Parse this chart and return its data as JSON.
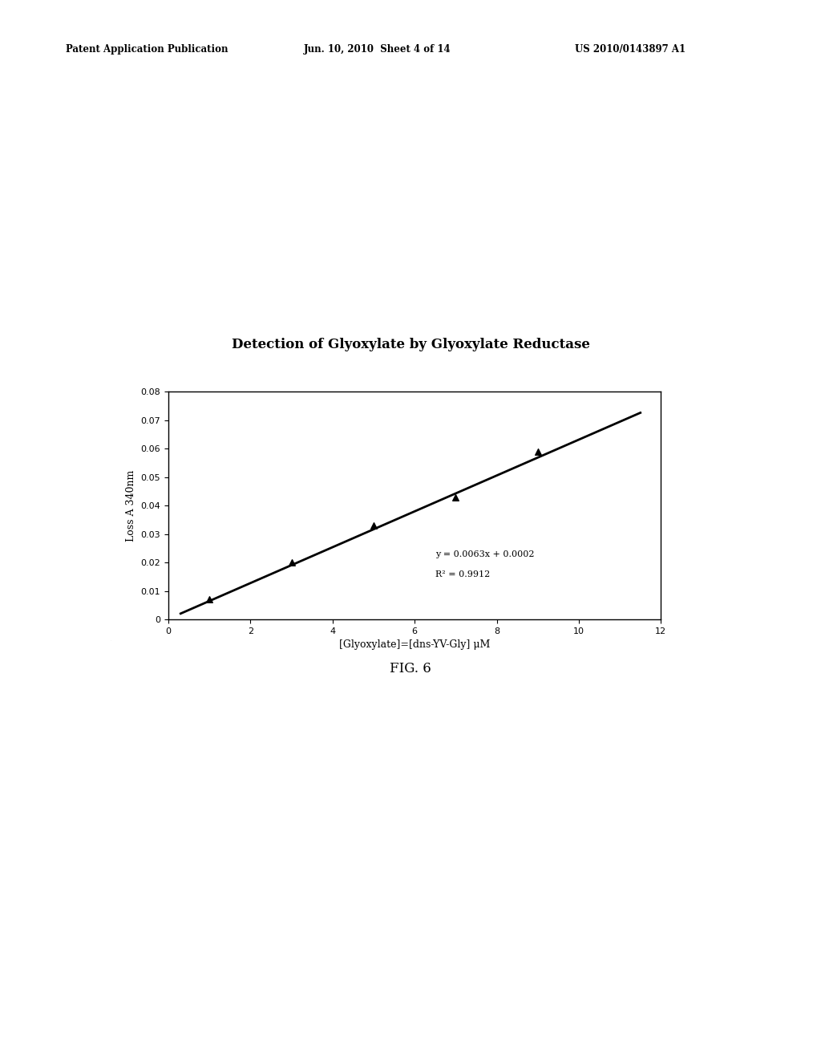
{
  "title": "Detection of Glyoxylate by Glyoxylate Reductase",
  "xlabel": "[Glyoxylate]=[dns-YV-Gly] μM",
  "ylabel": "Loss A 340nm",
  "xlim": [
    0,
    12
  ],
  "ylim": [
    0,
    0.08
  ],
  "xticks": [
    0,
    2,
    4,
    6,
    8,
    10,
    12
  ],
  "yticks": [
    0,
    0.01,
    0.02,
    0.03,
    0.04,
    0.05,
    0.06,
    0.07,
    0.08
  ],
  "data_x": [
    1,
    3,
    5,
    7,
    9
  ],
  "data_y": [
    0.007,
    0.02,
    0.033,
    0.043,
    0.059
  ],
  "slope": 0.0063,
  "intercept": 0.0002,
  "r_squared": 0.9912,
  "equation_text": "y = 0.0063x + 0.0002",
  "r2_text": "R² = 0.9912",
  "line_x_start": 0.3,
  "line_x_end": 11.5,
  "figure_caption": "FIG. 6",
  "header_left": "Patent Application Publication",
  "header_mid": "Jun. 10, 2010  Sheet 4 of 14",
  "header_right": "US 2010/0143897 A1",
  "bg_color": "#ffffff",
  "plot_bg_color": "#ffffff",
  "line_color": "#000000",
  "marker_color": "#000000",
  "text_color": "#000000",
  "title_fontsize": 12,
  "axis_label_fontsize": 9,
  "tick_fontsize": 8,
  "annotation_fontsize": 8,
  "header_fontsize": 8.5,
  "caption_fontsize": 12
}
